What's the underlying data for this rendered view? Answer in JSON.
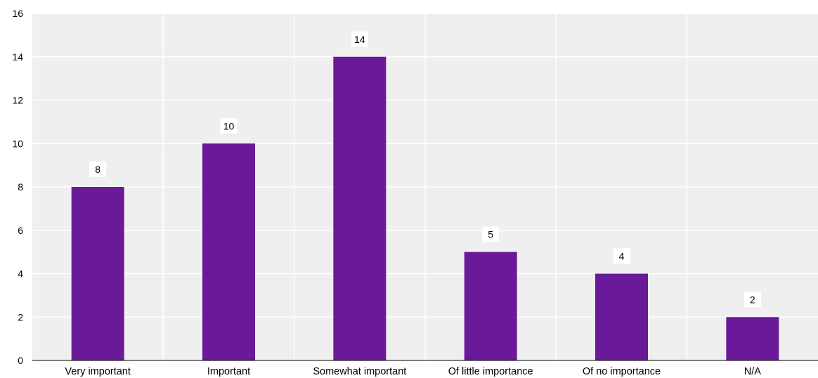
{
  "chart_data": {
    "type": "bar",
    "categories": [
      "Very important",
      "Important",
      "Somewhat important",
      "Of little importance",
      "Of no importance",
      "N/A"
    ],
    "values": [
      8,
      10,
      14,
      5,
      4,
      2
    ],
    "data_labels": [
      "8",
      "10",
      "14",
      "5",
      "4",
      "2"
    ],
    "y_ticks": [
      "0",
      "2",
      "4",
      "6",
      "8",
      "10",
      "12",
      "14",
      "16"
    ],
    "ylim": [
      0,
      16
    ],
    "title": "",
    "xlabel": "",
    "ylabel": "",
    "grid": true,
    "bar_color": "#6a1a99",
    "plot_background": "#efefef",
    "gridline_color": "#ffffff"
  }
}
